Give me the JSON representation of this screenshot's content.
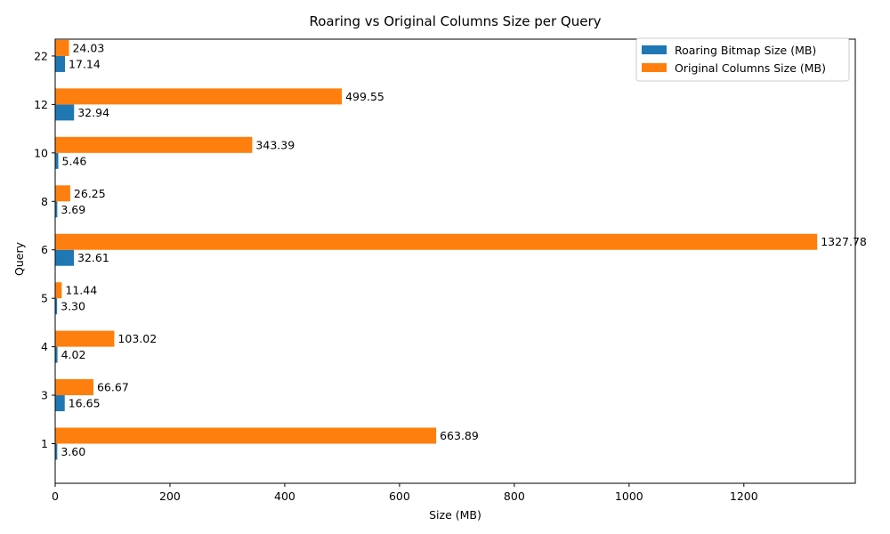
{
  "chart_data": {
    "type": "bar",
    "orientation": "horizontal",
    "title": "Roaring vs Original Columns Size per Query",
    "xlabel": "Size (MB)",
    "ylabel": "Query",
    "categories": [
      "1",
      "3",
      "4",
      "5",
      "6",
      "8",
      "10",
      "12",
      "22"
    ],
    "series": [
      {
        "name": "Roaring Bitmap Size (MB)",
        "color": "#1f77b4",
        "values": [
          3.6,
          16.65,
          4.02,
          3.3,
          32.61,
          3.69,
          5.46,
          32.94,
          17.14
        ],
        "labels": [
          "3.60",
          "16.65",
          "4.02",
          "3.30",
          "32.61",
          "3.69",
          "5.46",
          "32.94",
          "17.14"
        ]
      },
      {
        "name": "Original Columns Size (MB)",
        "color": "#ff7f0e",
        "values": [
          663.89,
          66.67,
          103.02,
          11.44,
          1327.78,
          26.25,
          343.39,
          499.55,
          24.03
        ],
        "labels": [
          "663.89",
          "66.67",
          "103.02",
          "11.44",
          "1327.78",
          "26.25",
          "343.39",
          "499.55",
          "24.03"
        ]
      }
    ],
    "xlim": [
      0,
      1394.17
    ],
    "xticks": [
      0,
      200,
      400,
      600,
      800,
      1000,
      1200
    ],
    "xtick_labels": [
      "0",
      "200",
      "400",
      "600",
      "800",
      "1000",
      "1200"
    ],
    "grid": false,
    "legend_position": "top-right"
  }
}
